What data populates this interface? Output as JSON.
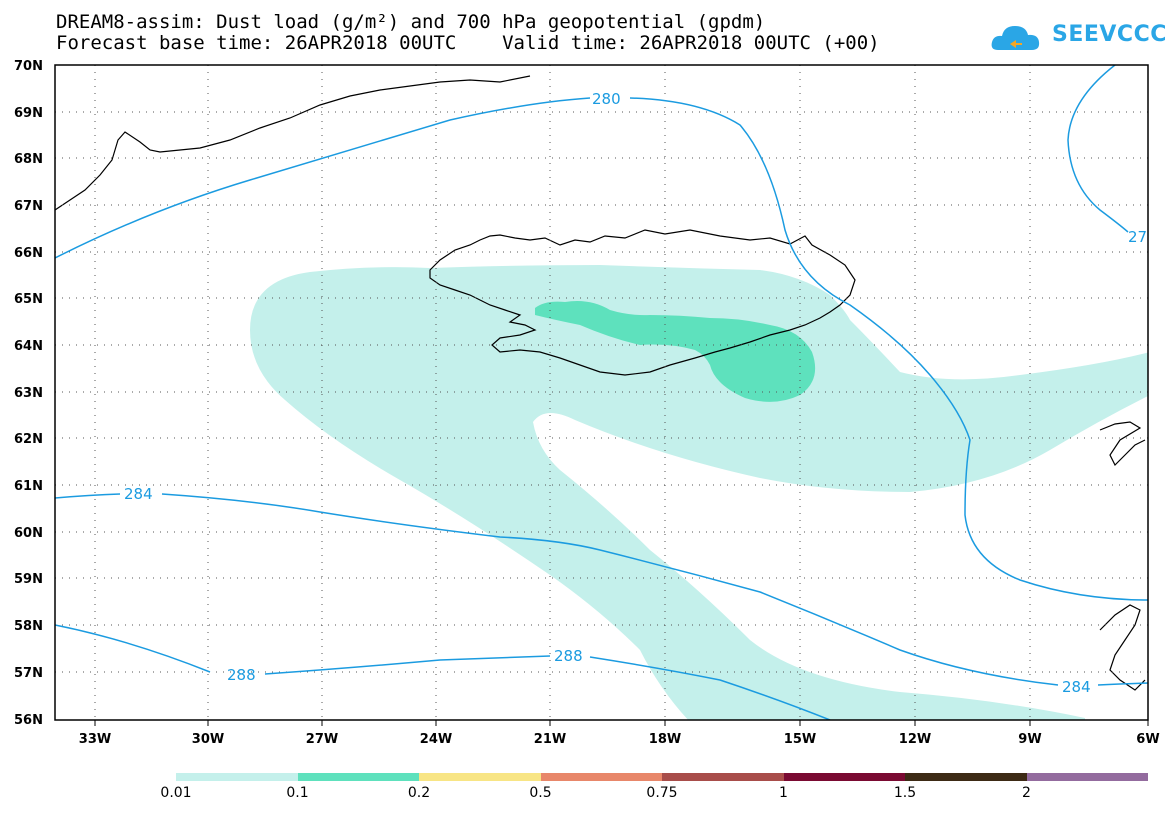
{
  "header": {
    "title_line1": "DREAM8-assim: Dust load (g/m²) and 700 hPa geopotential (gpdm)",
    "title_line2": "Forecast base time: 26APR2018 00UTC    Valid time: 26APR2018 00UTC (+00)"
  },
  "logo": {
    "text": "SEEVCCC",
    "icon": "cloud-icon",
    "color": "#2aa6e6"
  },
  "map": {
    "lat_labels": [
      "70N",
      "69N",
      "68N",
      "67N",
      "66N",
      "65N",
      "64N",
      "63N",
      "62N",
      "61N",
      "60N",
      "59N",
      "58N",
      "57N",
      "56N"
    ],
    "lon_labels": [
      "33W",
      "30W",
      "27W",
      "24W",
      "21W",
      "18W",
      "15W",
      "12W",
      "9W",
      "6W"
    ],
    "contour_labels": [
      {
        "text": "280",
        "key": "c280"
      },
      {
        "text": "284",
        "key": "c284a"
      },
      {
        "text": "288",
        "key": "c288a"
      },
      {
        "text": "288",
        "key": "c288b"
      },
      {
        "text": "284",
        "key": "c284b"
      },
      {
        "text": "27",
        "key": "c27"
      }
    ],
    "contour_color": "#1b9be0",
    "dust_colors": {
      "low": "#c4f0eb",
      "mid": "#5ee1bd"
    }
  },
  "colorbar": {
    "colors": [
      "#c4f0eb",
      "#5ee1bd",
      "#f8e585",
      "#e8876a",
      "#a84d4a",
      "#7a0a32",
      "#3d2a15",
      "#936b9e"
    ],
    "labels": [
      "0.01",
      "0.1",
      "0.2",
      "0.5",
      "0.75",
      "1",
      "1.5",
      "2"
    ]
  }
}
